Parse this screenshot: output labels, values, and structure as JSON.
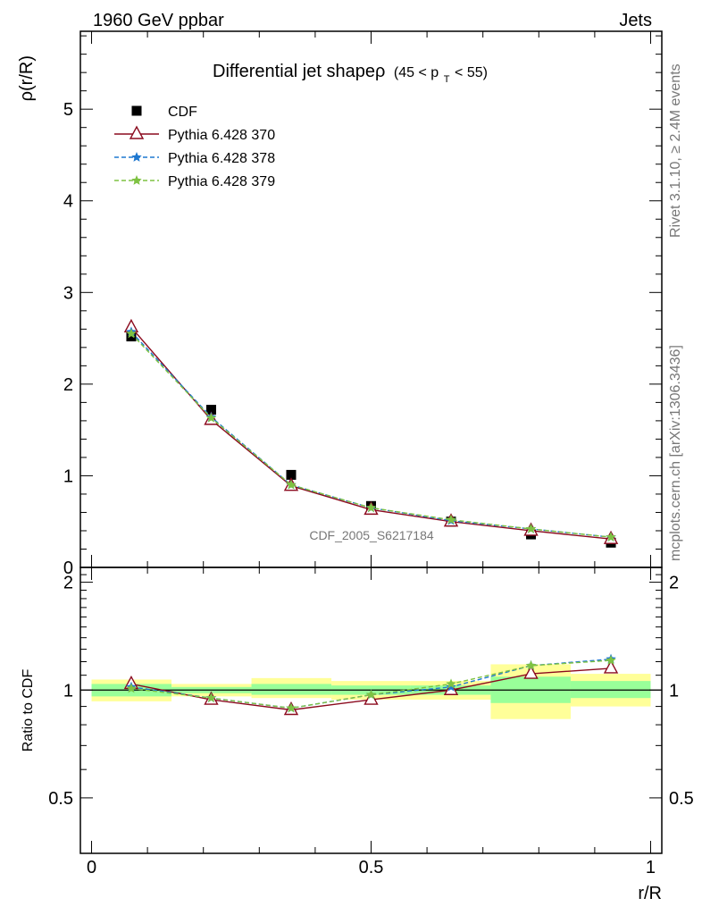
{
  "header": {
    "left": "1960 GeV ppbar",
    "right": "Jets"
  },
  "side_labels": {
    "rivet": "Rivet 3.1.10, ≥ 2.4M events",
    "mcplots": "mcplots.cern.ch [arXiv:1306.3436]"
  },
  "chart_data": [
    {
      "type": "line",
      "title": "Differential jet shapeρ",
      "title_suffix": "(45 < p",
      "title_sub": "T",
      "title_end": " < 55)",
      "ylabel": "ρ(r/R)",
      "xlabel": "",
      "xlim": [
        -0.02,
        1.02
      ],
      "ylim": [
        0,
        5.85
      ],
      "yticks": [
        0,
        1,
        2,
        3,
        4,
        5
      ],
      "ytick_labels": [
        "0",
        "1",
        "2",
        "3",
        "4",
        "5"
      ],
      "watermark": "CDF_2005_S6217184",
      "x": [
        0.071,
        0.214,
        0.357,
        0.5,
        0.643,
        0.786,
        0.929
      ],
      "series": [
        {
          "name": "CDF",
          "values": [
            2.52,
            1.72,
            1.01,
            0.67,
            0.5,
            0.36,
            0.27
          ],
          "color": "#000000",
          "marker": "square",
          "line": "none"
        },
        {
          "name": "Pythia 6.428 370",
          "values": [
            2.62,
            1.61,
            0.89,
            0.63,
            0.5,
            0.4,
            0.31
          ],
          "color": "#8b0a1e",
          "marker": "triangle-open",
          "line": "solid"
        },
        {
          "name": "Pythia 6.428 378",
          "values": [
            2.57,
            1.64,
            0.9,
            0.65,
            0.51,
            0.42,
            0.33
          ],
          "color": "#1f78d0",
          "marker": "star",
          "line": "dashed"
        },
        {
          "name": "Pythia 6.428 379",
          "values": [
            2.55,
            1.63,
            0.9,
            0.65,
            0.52,
            0.42,
            0.33
          ],
          "color": "#7ec242",
          "marker": "star",
          "line": "dashed"
        }
      ],
      "legend_placement": "top-left"
    },
    {
      "type": "line",
      "title": "",
      "ylabel": "Ratio to CDF",
      "xlabel": "r/R",
      "xlim": [
        -0.02,
        1.02
      ],
      "ylim": [
        0.35,
        2.2
      ],
      "yticks": [
        0.5,
        1,
        2
      ],
      "ytick_labels": [
        "0.5",
        "1",
        "2"
      ],
      "xticks": [
        0,
        0.5,
        1
      ],
      "xtick_labels": [
        "0",
        "0.5",
        "1"
      ],
      "reference_line": 1,
      "bands": {
        "bin_edges": [
          0,
          0.143,
          0.286,
          0.429,
          0.571,
          0.714,
          0.857,
          1.0
        ],
        "yellow_low": [
          0.93,
          0.96,
          0.95,
          0.94,
          0.94,
          0.83,
          0.9
        ],
        "yellow_high": [
          1.07,
          1.04,
          1.08,
          1.06,
          1.06,
          1.18,
          1.11
        ],
        "green_low": [
          0.96,
          0.98,
          0.97,
          0.97,
          0.97,
          0.92,
          0.95
        ],
        "green_high": [
          1.04,
          1.02,
          1.04,
          1.03,
          1.03,
          1.09,
          1.06
        ],
        "yellow_color": "#ffff99",
        "green_color": "#99ff99"
      },
      "x": [
        0.071,
        0.214,
        0.357,
        0.5,
        0.643,
        0.786,
        0.929
      ],
      "series": [
        {
          "name": "Pythia 6.428 370",
          "values": [
            1.04,
            0.94,
            0.88,
            0.94,
            1.0,
            1.11,
            1.15
          ],
          "color": "#8b0a1e",
          "marker": "triangle-open",
          "line": "solid"
        },
        {
          "name": "Pythia 6.428 378",
          "values": [
            1.02,
            0.95,
            0.89,
            0.97,
            1.02,
            1.17,
            1.22
          ],
          "color": "#1f78d0",
          "marker": "star",
          "line": "dashed"
        },
        {
          "name": "Pythia 6.428 379",
          "values": [
            1.01,
            0.95,
            0.89,
            0.97,
            1.04,
            1.17,
            1.21
          ],
          "color": "#7ec242",
          "marker": "star",
          "line": "dashed"
        }
      ]
    }
  ]
}
